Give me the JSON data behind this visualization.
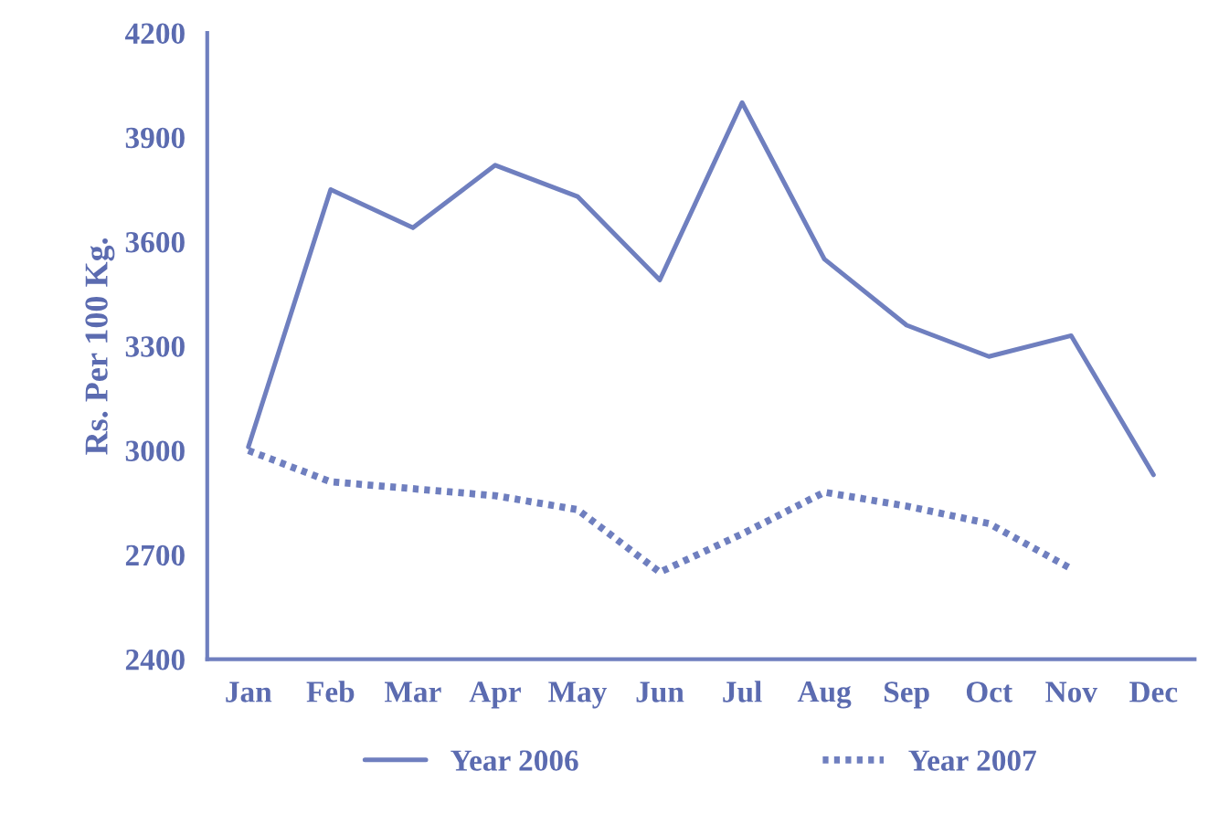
{
  "chart_data": {
    "type": "line",
    "ylabel": "Rs. Per 100 Kg.",
    "categories": [
      "Jan",
      "Feb",
      "Mar",
      "Apr",
      "May",
      "Jun",
      "Jul",
      "Aug",
      "Sep",
      "Oct",
      "Nov",
      "Dec"
    ],
    "series": [
      {
        "name": "Year 2006",
        "color": "#6f7fbf",
        "line_style": "solid",
        "values": [
          3010,
          3750,
          3640,
          3820,
          3730,
          3490,
          4000,
          3550,
          3360,
          3270,
          3330,
          2930
        ]
      },
      {
        "name": "Year 2007",
        "color": "#6f7fbf",
        "line_style": "dotted",
        "values": [
          3000,
          2910,
          2890,
          2870,
          2830,
          2650,
          2760,
          2880,
          2840,
          2790,
          2660,
          null
        ]
      }
    ],
    "ylim": [
      2400,
      4200
    ],
    "yticks": [
      2400,
      2700,
      3000,
      3300,
      3600,
      3900,
      4200
    ],
    "grid": false,
    "legend": "bottom",
    "marker": "none"
  }
}
